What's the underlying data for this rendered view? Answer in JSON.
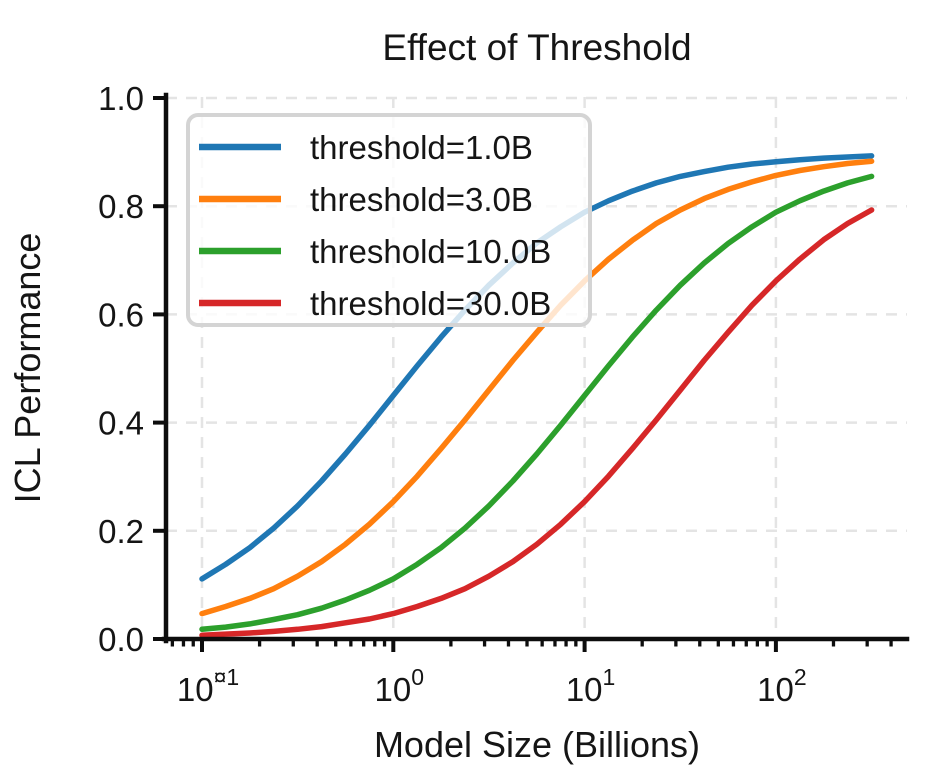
{
  "chart_data": {
    "type": "line",
    "title": "Effect of Threshold",
    "xlabel": "Model Size (Billions)",
    "ylabel": "ICL Performance",
    "x_scale": "log",
    "y_scale": "linear",
    "xlim": [
      0.065,
      480
    ],
    "ylim": [
      0.0,
      1.0
    ],
    "grid": true,
    "grid_style": "dashed",
    "grid_color": "#e4e4e4",
    "legend_position": "upper left",
    "x_tick_base": "10",
    "x_ticks": [
      {
        "value": 0.1,
        "exp": "¤1"
      },
      {
        "value": 1.0,
        "exp": "0"
      },
      {
        "value": 10.0,
        "exp": "1"
      },
      {
        "value": 100.0,
        "exp": "2"
      }
    ],
    "y_ticks": [
      {
        "value": 0.0,
        "label": "0.0"
      },
      {
        "value": 0.2,
        "label": "0.2"
      },
      {
        "value": 0.4,
        "label": "0.4"
      },
      {
        "value": 0.6,
        "label": "0.6"
      },
      {
        "value": 0.8,
        "label": "0.8"
      },
      {
        "value": 1.0,
        "label": "1.0"
      }
    ],
    "x": [
      0.1,
      0.133,
      0.178,
      0.237,
      0.316,
      0.422,
      0.562,
      0.75,
      1.0,
      1.334,
      1.778,
      2.371,
      3.162,
      4.217,
      5.623,
      7.499,
      10.0,
      13.335,
      17.783,
      23.714,
      31.623,
      42.17,
      56.234,
      74.989,
      100.0,
      133.352,
      177.828,
      237.137,
      316.228
    ],
    "series": [
      {
        "name": "threshold=1.0B",
        "threshold_billions": 1.0,
        "color": "#1f77b4",
        "values": [
          0.111,
          0.138,
          0.169,
          0.205,
          0.246,
          0.292,
          0.342,
          0.395,
          0.45,
          0.505,
          0.558,
          0.608,
          0.654,
          0.695,
          0.732,
          0.762,
          0.789,
          0.81,
          0.828,
          0.843,
          0.855,
          0.864,
          0.872,
          0.878,
          0.882,
          0.886,
          0.889,
          0.891,
          0.893
        ]
      },
      {
        "name": "threshold=3.0B",
        "threshold_billions": 3.0,
        "color": "#ff7f0e",
        "values": [
          0.047,
          0.06,
          0.075,
          0.093,
          0.116,
          0.143,
          0.175,
          0.212,
          0.254,
          0.301,
          0.352,
          0.405,
          0.46,
          0.515,
          0.567,
          0.617,
          0.662,
          0.702,
          0.737,
          0.768,
          0.793,
          0.814,
          0.831,
          0.845,
          0.857,
          0.866,
          0.873,
          0.879,
          0.883
        ]
      },
      {
        "name": "threshold=10.0B",
        "threshold_billions": 10.0,
        "color": "#2ca02c",
        "values": [
          0.018,
          0.022,
          0.028,
          0.036,
          0.045,
          0.057,
          0.072,
          0.09,
          0.111,
          0.138,
          0.169,
          0.205,
          0.246,
          0.292,
          0.342,
          0.395,
          0.45,
          0.505,
          0.558,
          0.608,
          0.654,
          0.695,
          0.731,
          0.762,
          0.789,
          0.81,
          0.828,
          0.843,
          0.855
        ]
      },
      {
        "name": "threshold=30.0B",
        "threshold_billions": 30.0,
        "color": "#d62728",
        "values": [
          0.007,
          0.009,
          0.011,
          0.014,
          0.018,
          0.023,
          0.03,
          0.037,
          0.047,
          0.06,
          0.075,
          0.093,
          0.116,
          0.143,
          0.175,
          0.212,
          0.254,
          0.301,
          0.352,
          0.405,
          0.46,
          0.515,
          0.567,
          0.617,
          0.662,
          0.702,
          0.738,
          0.768,
          0.793
        ]
      }
    ]
  }
}
